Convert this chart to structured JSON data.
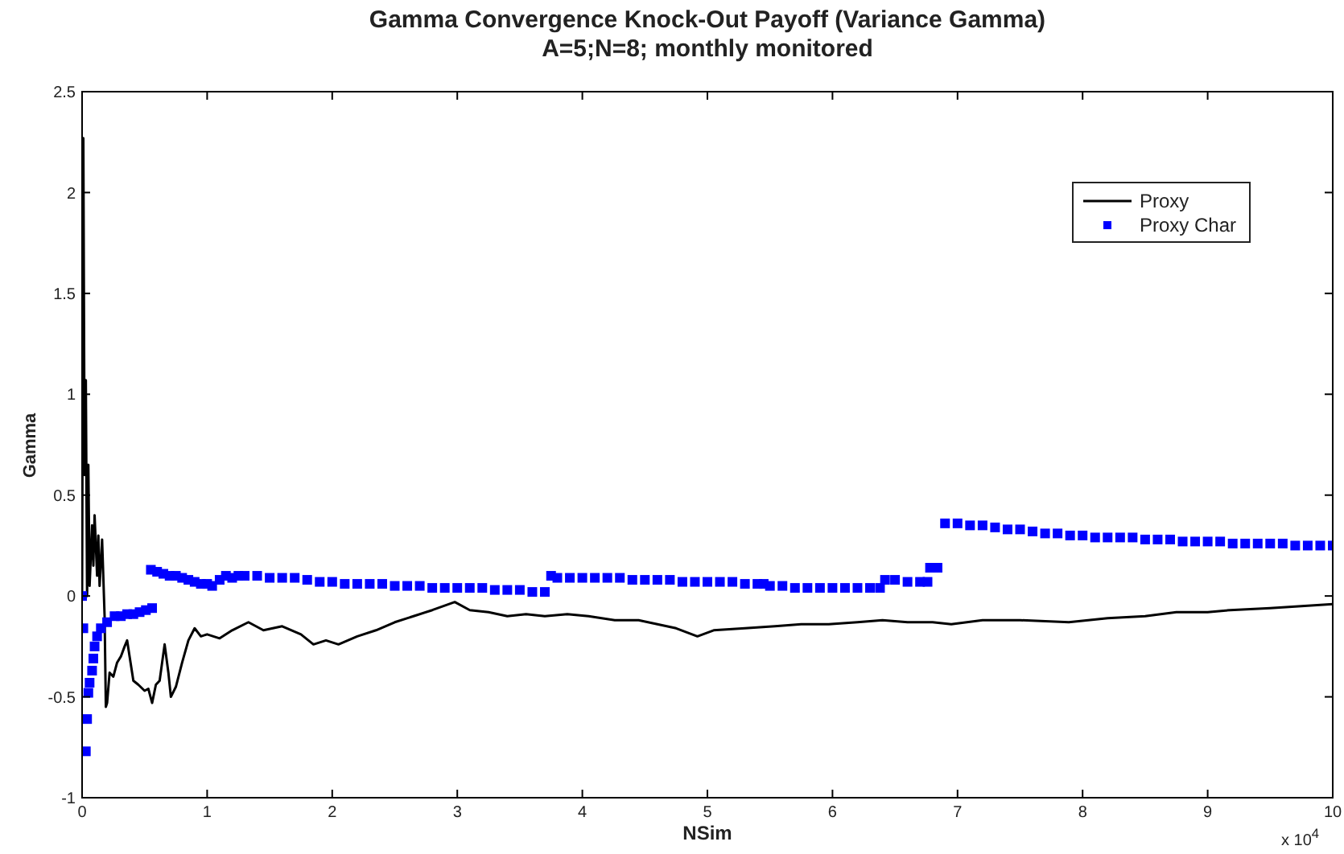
{
  "chart_data": {
    "type": "line",
    "title": "Gamma Convergence Knock-Out Payoff (Variance Gamma)",
    "subtitle": "A=5;N=8; monthly monitored",
    "xlabel": "NSim",
    "ylabel": "Gamma",
    "annotations": [
      "x 10$^{4}$"
    ],
    "xlim": [
      0,
      10
    ],
    "xticks": [
      0,
      1,
      2,
      3,
      4,
      5,
      6,
      7,
      8,
      9,
      10
    ],
    "ylim": [
      -1,
      2.5
    ],
    "yticks": [
      -1,
      -0.5,
      0,
      0.5,
      1,
      1.5,
      2,
      2.5
    ],
    "legend": "top right",
    "series": [
      {
        "name": "Proxy",
        "color": "#000000",
        "marker": "none",
        "line_style": "solid",
        "x": [
          0,
          0.01,
          0.02,
          0.03,
          0.04,
          0.05,
          0.06,
          0.08,
          0.09,
          0.1,
          0.12,
          0.13,
          0.14,
          0.16,
          0.18,
          0.19,
          0.2,
          0.22,
          0.25,
          0.28,
          0.31,
          0.34,
          0.36,
          0.38,
          0.41,
          0.45,
          0.5,
          0.53,
          0.56,
          0.59,
          0.62,
          0.66,
          0.69,
          0.71,
          0.75,
          0.8,
          0.85,
          0.9,
          0.95,
          1.0,
          1.1,
          1.2,
          1.33,
          1.45,
          1.6,
          1.75,
          1.85,
          1.95,
          2.05,
          2.2,
          2.35,
          2.5,
          2.65,
          2.8,
          2.98,
          3.1,
          3.25,
          3.4,
          3.55,
          3.7,
          3.88,
          4.05,
          4.26,
          4.45,
          4.6,
          4.75,
          4.92,
          5.05,
          5.3,
          5.54,
          5.75,
          5.97,
          6.2,
          6.4,
          6.6,
          6.8,
          6.95,
          7.2,
          7.5,
          7.89,
          8.2,
          8.5,
          8.75,
          9.0,
          9.18,
          9.5,
          9.75,
          10.0
        ],
        "values": [
          0,
          2.27,
          0.6,
          1.07,
          0,
          0.65,
          0.05,
          0.35,
          0.15,
          0.4,
          0.1,
          0.3,
          0.05,
          0.28,
          -0.1,
          -0.55,
          -0.53,
          -0.38,
          -0.4,
          -0.33,
          -0.3,
          -0.25,
          -0.22,
          -0.3,
          -0.42,
          -0.44,
          -0.47,
          -0.46,
          -0.53,
          -0.44,
          -0.42,
          -0.24,
          -0.38,
          -0.5,
          -0.45,
          -0.33,
          -0.22,
          -0.16,
          -0.2,
          -0.19,
          -0.21,
          -0.17,
          -0.13,
          -0.17,
          -0.15,
          -0.19,
          -0.24,
          -0.22,
          -0.24,
          -0.2,
          -0.17,
          -0.13,
          -0.1,
          -0.07,
          -0.03,
          -0.07,
          -0.08,
          -0.1,
          -0.09,
          -0.1,
          -0.09,
          -0.1,
          -0.12,
          -0.12,
          -0.14,
          -0.16,
          -0.2,
          -0.17,
          -0.16,
          -0.15,
          -0.14,
          -0.14,
          -0.13,
          -0.12,
          -0.13,
          -0.13,
          -0.14,
          -0.12,
          -0.12,
          -0.13,
          -0.11,
          -0.1,
          -0.08,
          -0.08,
          -0.07,
          -0.06,
          -0.05,
          -0.04
        ]
      },
      {
        "name": "Proxy Char",
        "type": "scatter",
        "color": "#0000ff",
        "marker": "square",
        "x": [
          0,
          0.01,
          0.03,
          0.04,
          0.05,
          0.06,
          0.08,
          0.09,
          0.1,
          0.12,
          0.15,
          0.2,
          0.26,
          0.31,
          0.36,
          0.41,
          0.46,
          0.51,
          0.56,
          0.55,
          0.6,
          0.65,
          0.7,
          0.75,
          0.8,
          0.85,
          0.9,
          0.95,
          1.0,
          1.04,
          1.1,
          1.15,
          1.2,
          1.25,
          1.3,
          1.4,
          1.5,
          1.6,
          1.7,
          1.8,
          1.9,
          2.0,
          2.1,
          2.2,
          2.3,
          2.4,
          2.5,
          2.6,
          2.7,
          2.8,
          2.9,
          3.0,
          3.1,
          3.2,
          3.3,
          3.4,
          3.5,
          3.6,
          3.7,
          3.75,
          3.8,
          3.9,
          4.0,
          4.1,
          4.2,
          4.3,
          4.4,
          4.5,
          4.6,
          4.7,
          4.8,
          4.9,
          5.0,
          5.1,
          5.2,
          5.3,
          5.4,
          5.45,
          5.5,
          5.6,
          5.7,
          5.8,
          5.9,
          6.0,
          6.1,
          6.2,
          6.3,
          6.38,
          6.42,
          6.5,
          6.6,
          6.7,
          6.76,
          6.78,
          6.84,
          6.9,
          7.0,
          7.1,
          7.2,
          7.3,
          7.4,
          7.5,
          7.6,
          7.7,
          7.8,
          7.9,
          8.0,
          8.1,
          8.2,
          8.3,
          8.4,
          8.5,
          8.6,
          8.7,
          8.8,
          8.9,
          9.0,
          9.1,
          9.2,
          9.3,
          9.4,
          9.5,
          9.6,
          9.7,
          9.8,
          9.9,
          10.0
        ],
        "values": [
          0,
          -0.16,
          -0.77,
          -0.61,
          -0.48,
          -0.43,
          -0.37,
          -0.31,
          -0.25,
          -0.2,
          -0.16,
          -0.13,
          -0.1,
          -0.1,
          -0.09,
          -0.09,
          -0.08,
          -0.07,
          -0.06,
          0.13,
          0.12,
          0.11,
          0.1,
          0.1,
          0.09,
          0.08,
          0.07,
          0.06,
          0.06,
          0.05,
          0.08,
          0.1,
          0.09,
          0.1,
          0.1,
          0.1,
          0.09,
          0.09,
          0.09,
          0.08,
          0.07,
          0.07,
          0.06,
          0.06,
          0.06,
          0.06,
          0.05,
          0.05,
          0.05,
          0.04,
          0.04,
          0.04,
          0.04,
          0.04,
          0.03,
          0.03,
          0.03,
          0.02,
          0.02,
          0.1,
          0.09,
          0.09,
          0.09,
          0.09,
          0.09,
          0.09,
          0.08,
          0.08,
          0.08,
          0.08,
          0.07,
          0.07,
          0.07,
          0.07,
          0.07,
          0.06,
          0.06,
          0.06,
          0.05,
          0.05,
          0.04,
          0.04,
          0.04,
          0.04,
          0.04,
          0.04,
          0.04,
          0.04,
          0.08,
          0.08,
          0.07,
          0.07,
          0.07,
          0.14,
          0.14,
          0.36,
          0.36,
          0.35,
          0.35,
          0.34,
          0.33,
          0.33,
          0.32,
          0.31,
          0.31,
          0.3,
          0.3,
          0.29,
          0.29,
          0.29,
          0.29,
          0.28,
          0.28,
          0.28,
          0.27,
          0.27,
          0.27,
          0.27,
          0.26,
          0.26,
          0.26,
          0.26,
          0.26,
          0.25,
          0.25,
          0.25,
          0.25
        ]
      }
    ]
  }
}
